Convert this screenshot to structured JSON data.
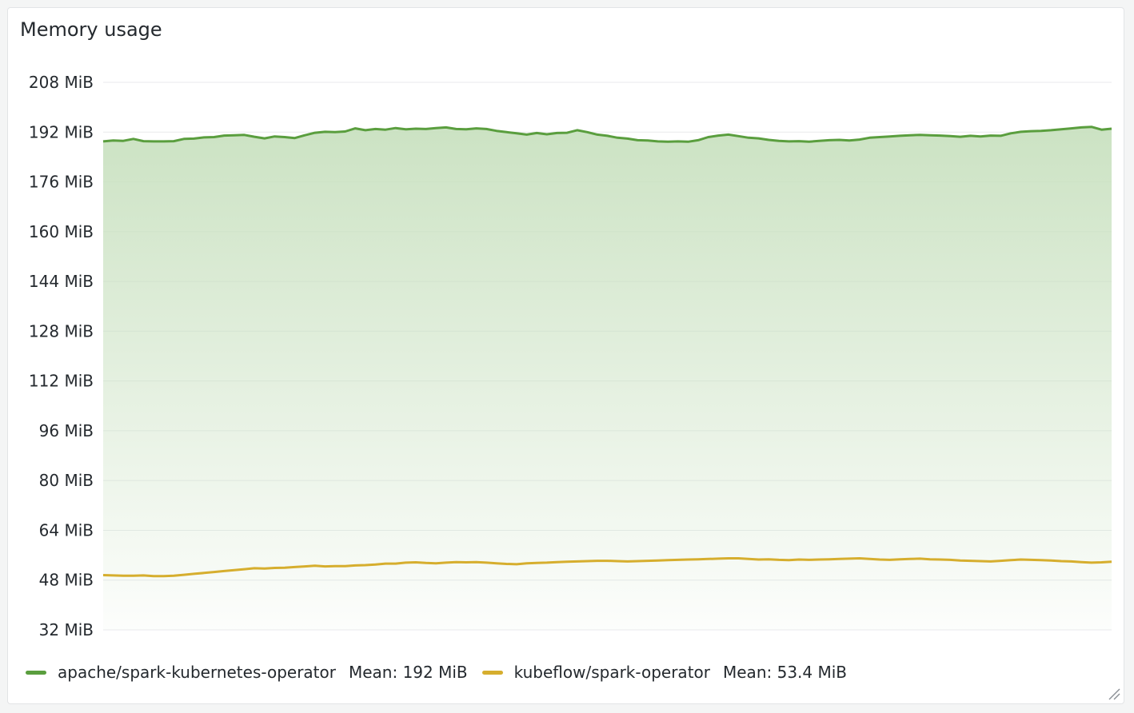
{
  "panel": {
    "title": "Memory usage"
  },
  "colors": {
    "series_a": "#5a9e3e",
    "series_b": "#d6ae2e",
    "fill_a": "#c9e1c0",
    "grid": "#e8eaec"
  },
  "chart_data": {
    "type": "line",
    "title": "Memory usage",
    "ylim": [
      32,
      208
    ],
    "yticks": [
      "208 MiB",
      "192 MiB",
      "176 MiB",
      "160 MiB",
      "144 MiB",
      "128 MiB",
      "112 MiB",
      "96 MiB",
      "80 MiB",
      "64 MiB",
      "48 MiB",
      "32 MiB"
    ],
    "ytick_values": [
      208,
      192,
      176,
      160,
      144,
      128,
      112,
      96,
      80,
      64,
      48,
      32
    ],
    "grid": true,
    "legend_position": "bottom-left",
    "series": [
      {
        "name": "apache/spark-kubernetes-operator",
        "mean": "Mean: 192 MiB",
        "fill": true,
        "values": [
          189.0,
          189.3,
          189.2,
          189.8,
          189.1,
          189.0,
          189.0,
          189.1,
          189.8,
          189.9,
          190.3,
          190.4,
          190.9,
          191.0,
          191.1,
          190.5,
          190.0,
          190.6,
          190.4,
          190.1,
          191.0,
          191.8,
          192.1,
          192.0,
          192.2,
          193.2,
          192.6,
          193.0,
          192.8,
          193.3,
          192.9,
          193.1,
          193.0,
          193.3,
          193.5,
          193.0,
          192.9,
          193.2,
          193.0,
          192.4,
          192.0,
          191.6,
          191.2,
          191.7,
          191.3,
          191.7,
          191.8,
          192.6,
          192.0,
          191.2,
          190.8,
          190.2,
          189.9,
          189.4,
          189.3,
          189.0,
          188.9,
          189.0,
          188.9,
          189.4,
          190.4,
          190.9,
          191.2,
          190.7,
          190.2,
          190.0,
          189.5,
          189.2,
          189.0,
          189.1,
          188.9,
          189.2,
          189.4,
          189.5,
          189.3,
          189.6,
          190.2,
          190.4,
          190.6,
          190.8,
          191.0,
          191.1,
          191.0,
          190.9,
          190.7,
          190.5,
          190.8,
          190.6,
          190.9,
          190.8,
          191.6,
          192.1,
          192.3,
          192.4,
          192.6,
          192.9,
          193.2,
          193.5,
          193.7,
          192.8,
          193.1
        ]
      },
      {
        "name": "kubeflow/spark-operator",
        "mean": "Mean: 53.4 MiB",
        "fill": false,
        "values": [
          49.6,
          49.5,
          49.4,
          49.4,
          49.5,
          49.3,
          49.3,
          49.4,
          49.7,
          50.0,
          50.3,
          50.6,
          50.9,
          51.2,
          51.5,
          51.8,
          51.7,
          51.9,
          52.0,
          52.2,
          52.4,
          52.6,
          52.4,
          52.5,
          52.5,
          52.7,
          52.8,
          53.0,
          53.3,
          53.3,
          53.6,
          53.7,
          53.5,
          53.4,
          53.6,
          53.8,
          53.7,
          53.8,
          53.6,
          53.4,
          53.2,
          53.1,
          53.4,
          53.5,
          53.6,
          53.8,
          53.9,
          54.0,
          54.1,
          54.2,
          54.2,
          54.1,
          54.0,
          54.1,
          54.2,
          54.3,
          54.4,
          54.5,
          54.6,
          54.7,
          54.8,
          54.9,
          55.0,
          55.0,
          54.8,
          54.6,
          54.7,
          54.5,
          54.4,
          54.6,
          54.5,
          54.6,
          54.7,
          54.8,
          54.9,
          55.0,
          54.8,
          54.6,
          54.5,
          54.7,
          54.8,
          54.9,
          54.7,
          54.6,
          54.5,
          54.3,
          54.2,
          54.1,
          54.0,
          54.2,
          54.4,
          54.6,
          54.5,
          54.4,
          54.3,
          54.1,
          54.0,
          53.8,
          53.6,
          53.7,
          53.9
        ]
      }
    ]
  }
}
